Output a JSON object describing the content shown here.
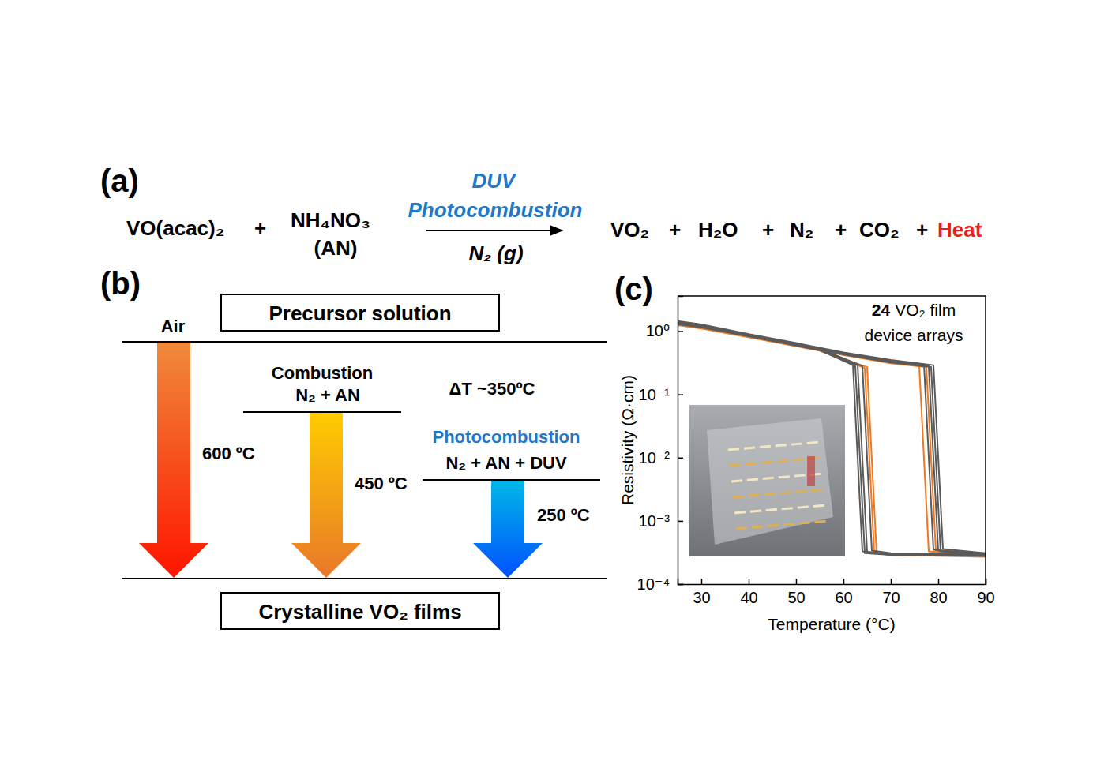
{
  "panels": {
    "a": {
      "label": "(a)",
      "reactants": [
        "VO(acac)₂",
        "+",
        "NH₄NO₃"
      ],
      "reactant_note": "(AN)",
      "above_arrow": [
        "DUV",
        "Photocombustion"
      ],
      "below_arrow": "N₂ (g)",
      "products": [
        "VO₂",
        "+",
        "H₂O",
        "+",
        "N₂",
        "+",
        "CO₂",
        "+",
        "Heat"
      ]
    },
    "b": {
      "label": "(b)",
      "start": "Precursor solution",
      "end": "Crystalline VO₂ films",
      "routes": [
        {
          "title": [
            "Air"
          ],
          "temperature": "600 ºC"
        },
        {
          "title": [
            "Combustion",
            "N₂ + AN"
          ],
          "temperature": "450 ºC"
        },
        {
          "title": [
            "Photocombustion",
            "N₂ + AN + DUV"
          ],
          "temperature": "250 ºC"
        }
      ],
      "delta": "ΔT ~350ºC"
    },
    "c": {
      "label": "(c)"
    }
  },
  "chart_data": {
    "type": "line",
    "x_label": "Temperature (°C)",
    "y_label": "Resistivity (Ω·cm)",
    "annotation": {
      "count": 24,
      "text": [
        "VO₂ film",
        "device arrays"
      ]
    },
    "log": "y",
    "xlim": [
      25,
      90
    ],
    "xticks": [
      30,
      40,
      50,
      60,
      70,
      80,
      90
    ],
    "ylim": [
      0.0001,
      3.6
    ],
    "yticks": [
      {
        "value": 0.0001,
        "label": "10⁻⁴"
      },
      {
        "value": 0.001,
        "label": "10⁻³"
      },
      {
        "value": 0.01,
        "label": "10⁻²"
      },
      {
        "value": 0.1,
        "label": "10⁻¹"
      },
      {
        "value": 1,
        "label": "10⁰"
      }
    ],
    "series": [
      {
        "color": "#f07820",
        "x": [
          25,
          30,
          40,
          50,
          60,
          70,
          76,
          78,
          90,
          90,
          70,
          67,
          65,
          55,
          40,
          30,
          25
        ],
        "values": [
          1.3,
          1.15,
          0.82,
          0.6,
          0.43,
          0.32,
          0.28,
          0.00033,
          0.00028,
          0.00027,
          0.00029,
          0.00031,
          0.27,
          0.5,
          0.82,
          1.12,
          1.28
        ]
      },
      {
        "color": "#f07820",
        "x": [
          25,
          30,
          40,
          50,
          60,
          70,
          77.5,
          79.5,
          90,
          90,
          70,
          66.5,
          64.5,
          55,
          40,
          30,
          25
        ],
        "values": [
          1.25,
          1.12,
          0.8,
          0.58,
          0.42,
          0.31,
          0.27,
          0.00034,
          0.00029,
          0.00028,
          0.0003,
          0.00032,
          0.26,
          0.49,
          0.8,
          1.1,
          1.24
        ]
      },
      {
        "color": "#5a5a5a",
        "x": [
          25,
          30,
          40,
          50,
          60,
          70,
          77,
          79,
          90,
          90,
          70,
          64,
          62,
          55,
          40,
          30,
          25
        ],
        "values": [
          1.4,
          1.25,
          0.88,
          0.63,
          0.45,
          0.34,
          0.3,
          0.00035,
          0.0003,
          0.00029,
          0.0003,
          0.00033,
          0.3,
          0.52,
          0.87,
          1.22,
          1.38
        ]
      },
      {
        "color": "#5a5a5a",
        "x": [
          25,
          30,
          40,
          50,
          60,
          70,
          78,
          80,
          90,
          90,
          70,
          65,
          63,
          55,
          40,
          30,
          25
        ],
        "values": [
          1.35,
          1.2,
          0.86,
          0.62,
          0.44,
          0.33,
          0.28,
          0.00034,
          0.0003,
          0.00028,
          0.00029,
          0.00032,
          0.29,
          0.51,
          0.85,
          1.18,
          1.33
        ]
      },
      {
        "color": "#5a5a5a",
        "x": [
          25,
          30,
          40,
          50,
          60,
          70,
          79,
          81,
          90,
          90,
          70,
          66,
          64,
          55,
          40,
          30,
          25
        ],
        "values": [
          1.45,
          1.28,
          0.9,
          0.65,
          0.46,
          0.35,
          0.29,
          0.00036,
          0.00031,
          0.0003,
          0.00031,
          0.00034,
          0.28,
          0.53,
          0.89,
          1.25,
          1.43
        ]
      },
      {
        "color": "#5a5a5a",
        "x": [
          25,
          30,
          40,
          50,
          60,
          70,
          78.5,
          80.5,
          90,
          90,
          70,
          64.5,
          62.5,
          55,
          40,
          30,
          25
        ],
        "values": [
          1.3,
          1.17,
          0.84,
          0.6,
          0.43,
          0.32,
          0.27,
          0.00033,
          0.00029,
          0.00028,
          0.00029,
          0.00031,
          0.28,
          0.5,
          0.83,
          1.15,
          1.29
        ]
      }
    ]
  }
}
